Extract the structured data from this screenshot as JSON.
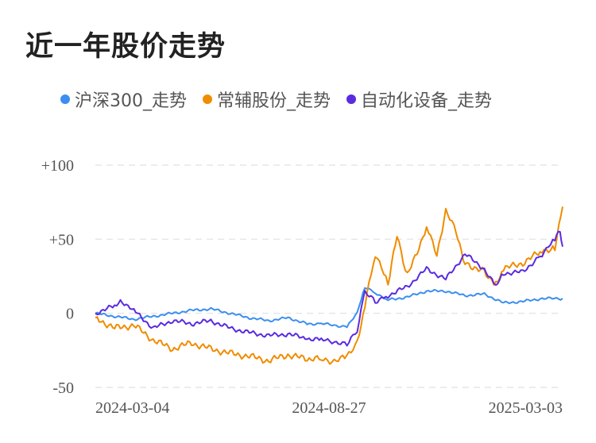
{
  "title": "近一年股价走势",
  "chart_data": {
    "type": "line",
    "title": "近一年股价走势",
    "xlabel": "",
    "ylabel": "",
    "y_ticks": [
      "+100",
      "+50",
      "0",
      "-50"
    ],
    "y_tick_values": [
      100,
      50,
      0,
      -50
    ],
    "ylim": [
      -50,
      100
    ],
    "x_ticks": [
      "2024-03-04",
      "2024-08-27",
      "2025-03-03"
    ],
    "x_range": [
      "2024-03-04",
      "2025-03-03"
    ],
    "grid": true,
    "legend_position": "top",
    "series": [
      {
        "name": "沪深300_走势",
        "color": "#3a8ff0",
        "points": [
          [
            "2024-03-04",
            0
          ],
          [
            "2024-03-19",
            -2
          ],
          [
            "2024-04-03",
            -4
          ],
          [
            "2024-04-18",
            -2
          ],
          [
            "2024-05-03",
            0
          ],
          [
            "2024-05-18",
            2
          ],
          [
            "2024-06-02",
            3
          ],
          [
            "2024-06-17",
            0
          ],
          [
            "2024-07-02",
            -3
          ],
          [
            "2024-07-17",
            -5
          ],
          [
            "2024-08-01",
            -3
          ],
          [
            "2024-08-16",
            -7
          ],
          [
            "2024-08-27",
            -7
          ],
          [
            "2024-09-06",
            -8
          ],
          [
            "2024-09-16",
            -9
          ],
          [
            "2024-09-24",
            0
          ],
          [
            "2024-09-30",
            18
          ],
          [
            "2024-10-08",
            14
          ],
          [
            "2024-10-18",
            9
          ],
          [
            "2024-11-02",
            11
          ],
          [
            "2024-11-17",
            15
          ],
          [
            "2024-12-02",
            15
          ],
          [
            "2024-12-17",
            12
          ],
          [
            "2025-01-01",
            13
          ],
          [
            "2025-01-16",
            7
          ],
          [
            "2025-01-31",
            8
          ],
          [
            "2025-02-15",
            10
          ],
          [
            "2025-03-03",
            10
          ]
        ]
      },
      {
        "name": "常辅股份_走势",
        "color": "#f08c00",
        "points": [
          [
            "2024-03-04",
            -3
          ],
          [
            "2024-03-19",
            -10
          ],
          [
            "2024-04-03",
            -8
          ],
          [
            "2024-04-18",
            -18
          ],
          [
            "2024-05-03",
            -24
          ],
          [
            "2024-05-18",
            -20
          ],
          [
            "2024-06-02",
            -24
          ],
          [
            "2024-06-17",
            -27
          ],
          [
            "2024-07-02",
            -29
          ],
          [
            "2024-07-17",
            -32
          ],
          [
            "2024-08-01",
            -28
          ],
          [
            "2024-08-16",
            -31
          ],
          [
            "2024-08-27",
            -31
          ],
          [
            "2024-09-06",
            -32
          ],
          [
            "2024-09-16",
            -30
          ],
          [
            "2024-09-24",
            -20
          ],
          [
            "2024-09-30",
            5
          ],
          [
            "2024-10-08",
            40
          ],
          [
            "2024-10-18",
            20
          ],
          [
            "2024-10-25",
            52
          ],
          [
            "2024-11-02",
            25
          ],
          [
            "2024-11-17",
            58
          ],
          [
            "2024-11-25",
            40
          ],
          [
            "2024-12-02",
            69
          ],
          [
            "2024-12-10",
            55
          ],
          [
            "2024-12-17",
            34
          ],
          [
            "2025-01-01",
            28
          ],
          [
            "2025-01-10",
            20
          ],
          [
            "2025-01-16",
            30
          ],
          [
            "2025-01-31",
            34
          ],
          [
            "2025-02-15",
            42
          ],
          [
            "2025-02-25",
            45
          ],
          [
            "2025-03-03",
            72
          ]
        ]
      },
      {
        "name": "自动化设备_走势",
        "color": "#5a2be0",
        "points": [
          [
            "2024-03-04",
            0
          ],
          [
            "2024-03-19",
            5
          ],
          [
            "2024-03-25",
            8
          ],
          [
            "2024-04-03",
            2
          ],
          [
            "2024-04-18",
            -10
          ],
          [
            "2024-05-03",
            -5
          ],
          [
            "2024-05-18",
            -7
          ],
          [
            "2024-06-02",
            -5
          ],
          [
            "2024-06-17",
            -10
          ],
          [
            "2024-07-02",
            -13
          ],
          [
            "2024-07-17",
            -15
          ],
          [
            "2024-08-01",
            -14
          ],
          [
            "2024-08-16",
            -17
          ],
          [
            "2024-08-27",
            -18
          ],
          [
            "2024-09-06",
            -19
          ],
          [
            "2024-09-16",
            -21
          ],
          [
            "2024-09-24",
            -12
          ],
          [
            "2024-09-30",
            15
          ],
          [
            "2024-10-08",
            8
          ],
          [
            "2024-10-18",
            12
          ],
          [
            "2024-11-02",
            18
          ],
          [
            "2024-11-17",
            30
          ],
          [
            "2024-12-02",
            23
          ],
          [
            "2024-12-17",
            40
          ],
          [
            "2025-01-01",
            30
          ],
          [
            "2025-01-10",
            18
          ],
          [
            "2025-01-16",
            27
          ],
          [
            "2025-01-31",
            28
          ],
          [
            "2025-02-15",
            40
          ],
          [
            "2025-02-25",
            50
          ],
          [
            "2025-03-01",
            56
          ],
          [
            "2025-03-03",
            45
          ]
        ]
      }
    ]
  }
}
